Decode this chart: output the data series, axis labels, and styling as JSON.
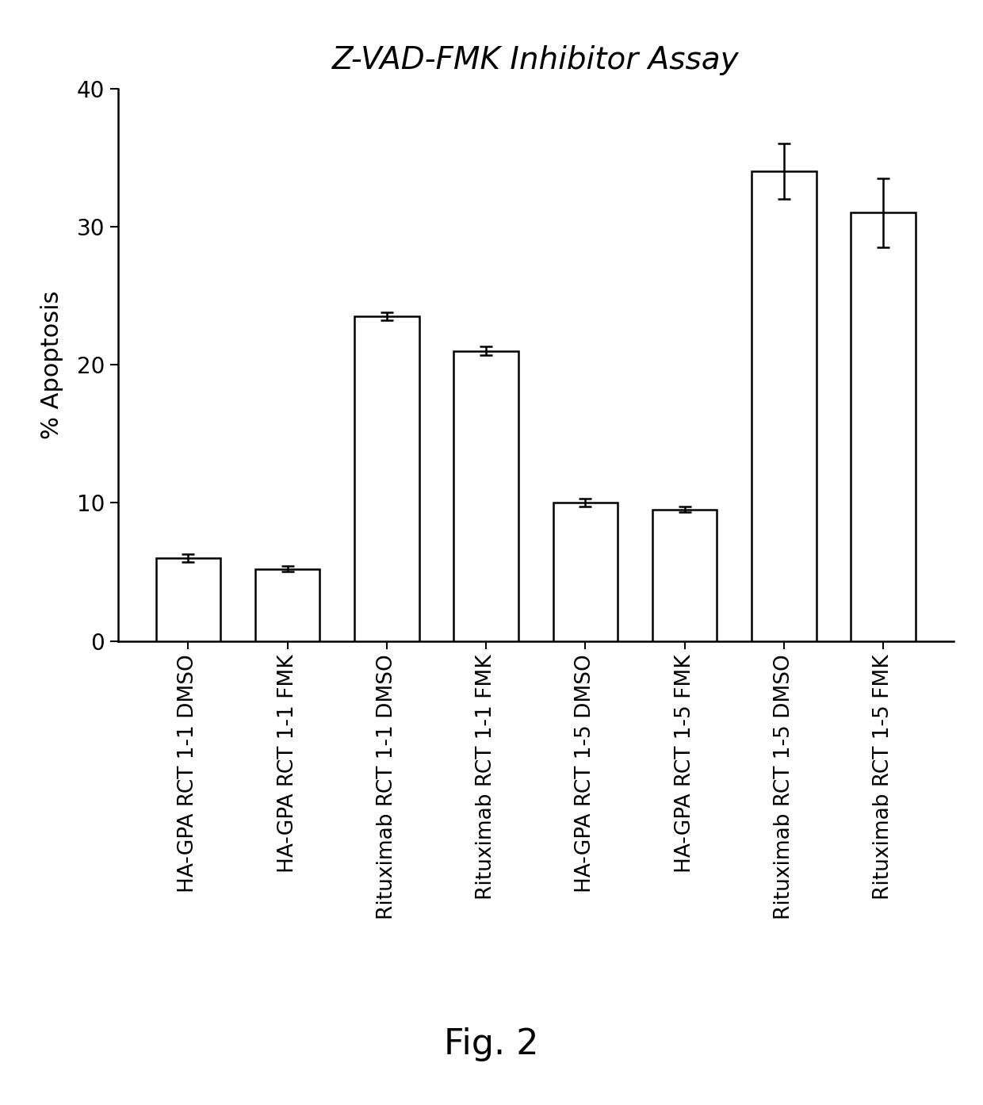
{
  "title": "Z-VAD-FMK Inhibitor Assay",
  "ylabel": "% Apoptosis",
  "fig_caption": "Fig. 2",
  "categories": [
    "HA-GPA RCT 1-1 DMSO",
    "HA-GPA RCT 1-1 FMK",
    "Rituximab RCT 1-1 DMSO",
    "Rituximab RCT 1-1 FMK",
    "HA-GPA RCT 1-5 DMSO",
    "HA-GPA RCT 1-5 FMK",
    "Rituximab RCT 1-5 DMSO",
    "Rituximab RCT 1-5 FMK"
  ],
  "values": [
    6.0,
    5.2,
    23.5,
    21.0,
    10.0,
    9.5,
    34.0,
    31.0
  ],
  "errors": [
    0.3,
    0.2,
    0.3,
    0.3,
    0.3,
    0.2,
    2.0,
    2.5
  ],
  "ylim": [
    0,
    40
  ],
  "yticks": [
    0,
    10,
    20,
    30,
    40
  ],
  "bar_color": "#ffffff",
  "bar_edgecolor": "#000000",
  "bar_linewidth": 1.8,
  "errorbar_color": "#000000",
  "errorbar_capsize": 6,
  "errorbar_linewidth": 1.8,
  "title_fontsize": 28,
  "title_style": "italic",
  "ylabel_fontsize": 22,
  "ytick_fontsize": 20,
  "xtick_fontsize": 19,
  "caption_fontsize": 32,
  "background_color": "#ffffff",
  "bar_width": 0.65,
  "figsize": [
    12.4,
    13.94
  ],
  "dpi": 100
}
